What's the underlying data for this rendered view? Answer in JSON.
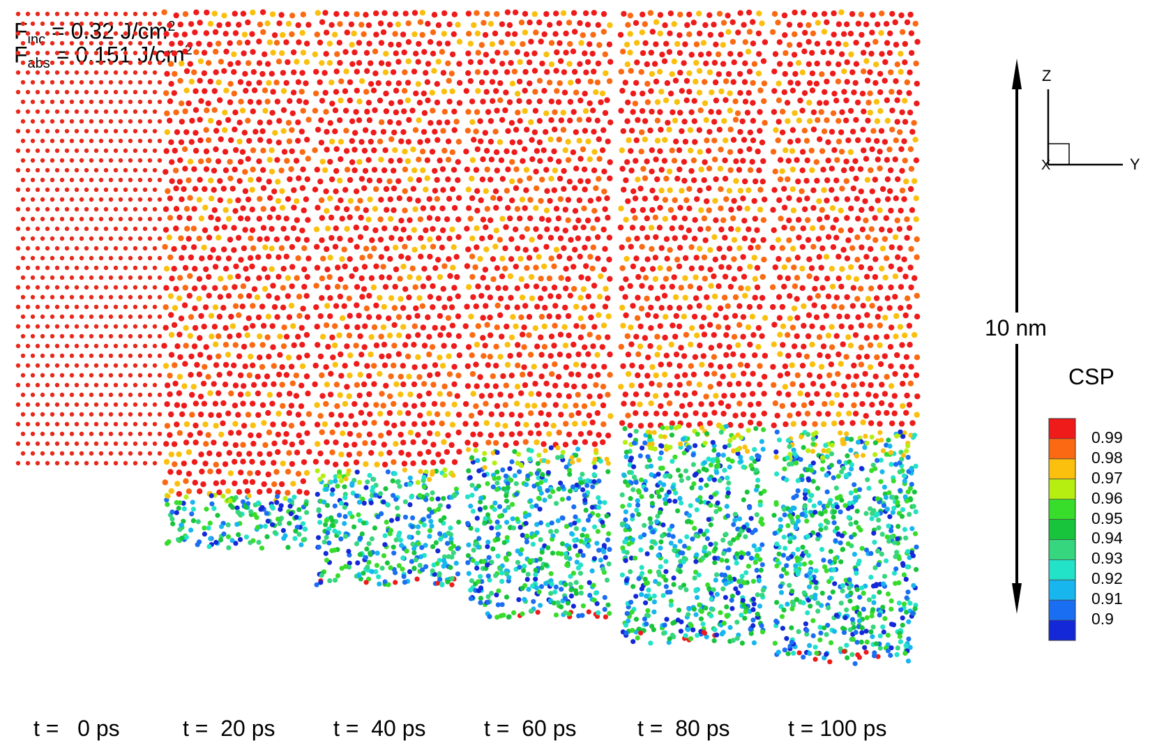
{
  "fluence": {
    "inc_symbol": "F",
    "inc_sub": "inc",
    "inc_value": " = 0.32 J/cm",
    "inc_sup": "2",
    "abs_symbol": "F",
    "abs_sub": "abs",
    "abs_value": " = 0.151 J/cm",
    "abs_sup": "2"
  },
  "time_labels": [
    "t =   0 ps",
    "t =  20 ps",
    "t =  40 ps",
    "t =  60 ps",
    "t =  80 ps",
    "t = 100 ps"
  ],
  "panels": [
    {
      "time_ps": 0,
      "top_z_nm": 11.1,
      "melt_z_nm": null,
      "bottom_z_nm": 2.5
    },
    {
      "time_ps": 20,
      "top_z_nm": 13.0,
      "melt_z_nm": 2.0,
      "bottom_z_nm": 1.0
    },
    {
      "time_ps": 40,
      "top_z_nm": 13.0,
      "melt_z_nm": 2.5,
      "bottom_z_nm": 0.3
    },
    {
      "time_ps": 60,
      "top_z_nm": 13.0,
      "melt_z_nm": 2.9,
      "bottom_z_nm": -0.3
    },
    {
      "time_ps": 80,
      "top_z_nm": 13.0,
      "melt_z_nm": 3.3,
      "bottom_z_nm": -0.8
    },
    {
      "time_ps": 100,
      "top_z_nm": 13.0,
      "melt_z_nm": 3.2,
      "bottom_z_nm": -1.2
    }
  ],
  "scale_bar": {
    "label": "10 nm",
    "length_nm": 10
  },
  "axes": {
    "z": "Z",
    "y": "Y",
    "x": "X"
  },
  "colorbar": {
    "title": "CSP",
    "ticks": [
      "0.99",
      "0.98",
      "0.97",
      "0.96",
      "0.95",
      "0.94",
      "0.93",
      "0.92",
      "0.91",
      "0.9"
    ],
    "colors": [
      "#ef1a1a",
      "#fb6a12",
      "#fbc00e",
      "#b6ee12",
      "#38dc2a",
      "#18c43c",
      "#36d67e",
      "#22e2c8",
      "#18b6ee",
      "#1a6ef2",
      "#1428d8"
    ]
  },
  "colors": {
    "arrow": "#000000",
    "atom_crystal": "#e8281a"
  }
}
